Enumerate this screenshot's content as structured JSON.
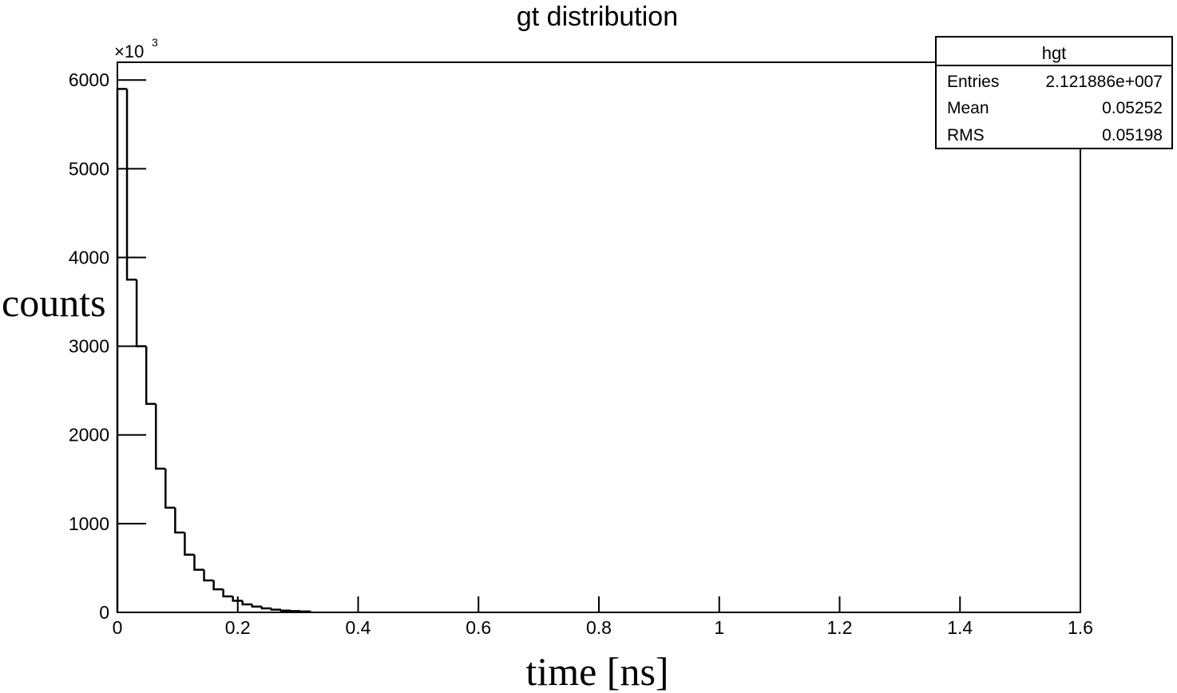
{
  "chart_data": {
    "type": "histogram",
    "title": "gt distribution",
    "x_label": "time [ns]",
    "y_label": "counts",
    "y_multiplier": {
      "base": "×10",
      "exp": "3"
    },
    "bins": [
      0,
      0.016,
      0.032,
      0.048,
      0.064,
      0.08,
      0.096,
      0.112,
      0.128,
      0.144,
      0.16,
      0.176,
      0.192,
      0.208,
      0.224,
      0.24,
      0.256,
      0.272,
      0.288,
      0.304,
      0.32
    ],
    "values": [
      5900,
      3750,
      3000,
      2350,
      1620,
      1180,
      900,
      650,
      480,
      360,
      260,
      180,
      130,
      90,
      65,
      45,
      30,
      20,
      15,
      10
    ],
    "color": "#000000",
    "xlim": [
      0,
      1.6
    ],
    "xticks": [
      0,
      0.2,
      0.4,
      0.6,
      0.8,
      1,
      1.2,
      1.4,
      1.6
    ],
    "ylim": [
      0,
      6200
    ],
    "yticks": [
      0,
      1000,
      2000,
      3000,
      4000,
      5000,
      6000
    ],
    "stats": {
      "title": "hgt",
      "rows": [
        [
          "Entries",
          "2.121886e+007"
        ],
        [
          "Mean",
          "0.05252"
        ],
        [
          "RMS",
          "0.05198"
        ]
      ]
    }
  }
}
